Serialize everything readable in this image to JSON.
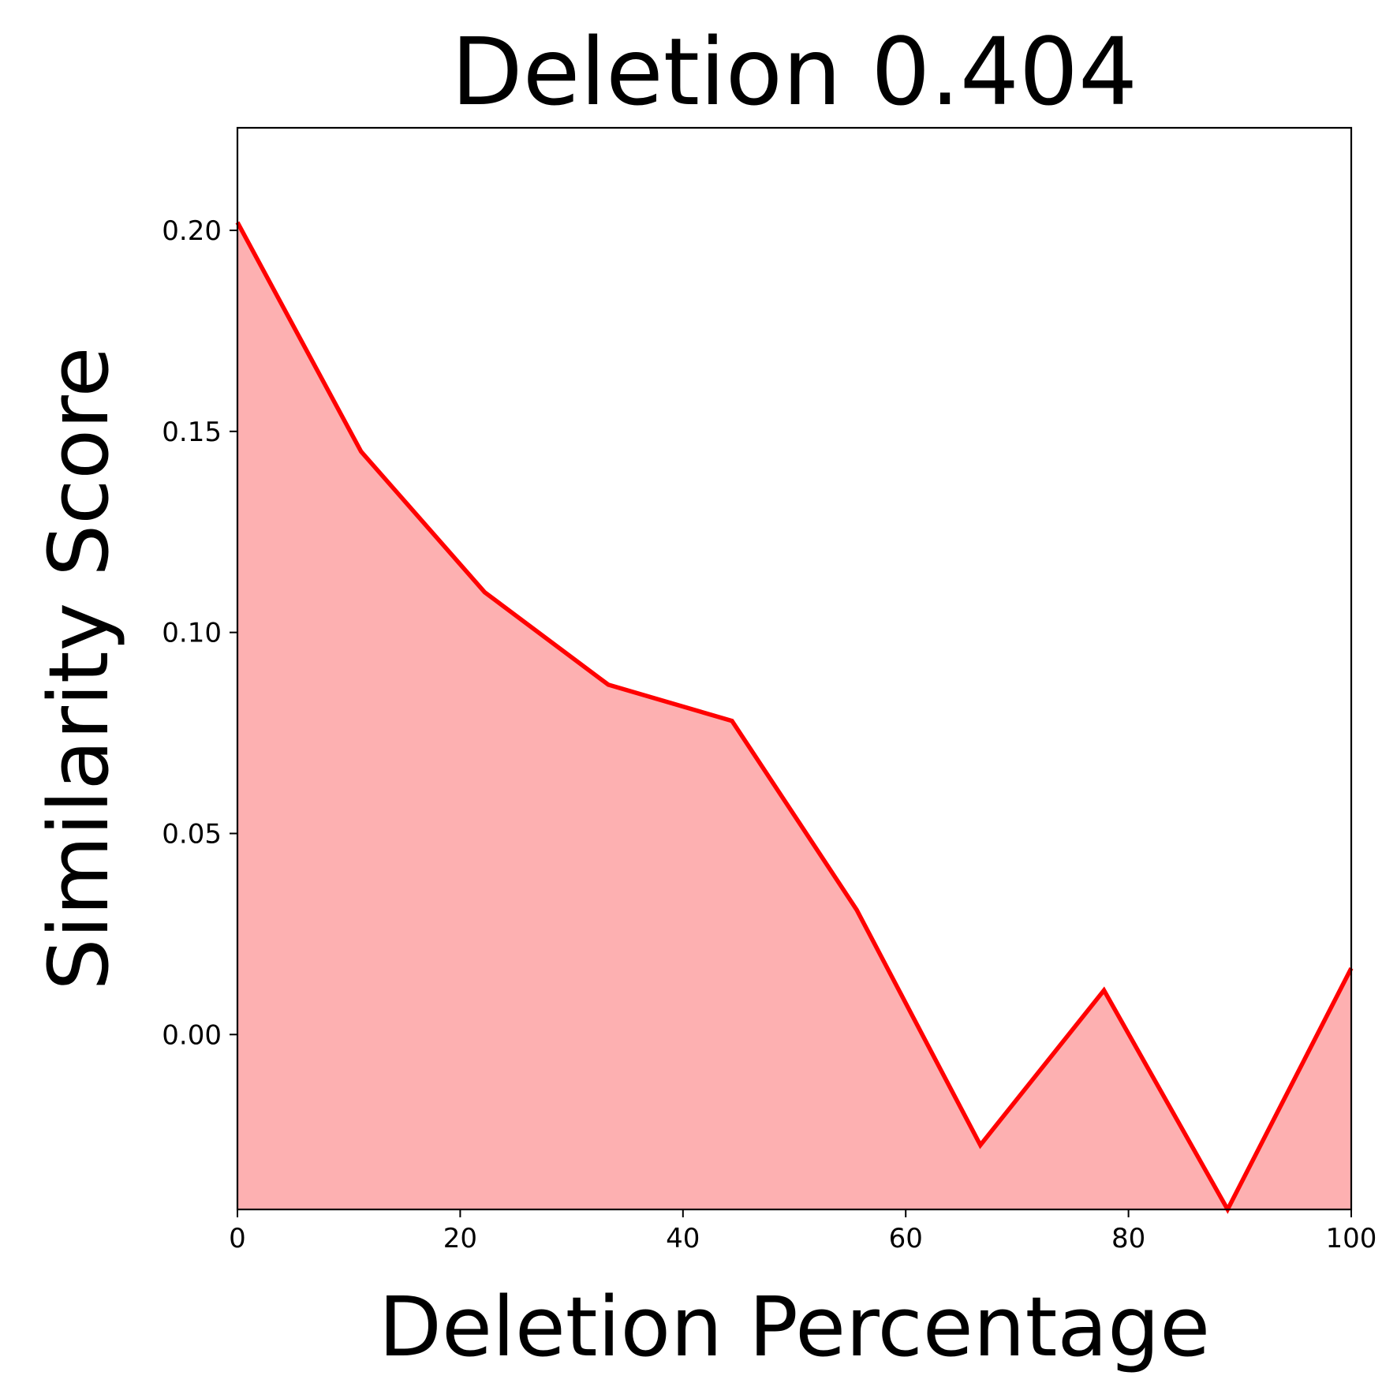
{
  "chart_data": {
    "type": "area",
    "title": "Deletion 0.404",
    "xlabel": "Deletion Percentage",
    "ylabel": "Similarity Score",
    "xlim": [
      0,
      100
    ],
    "ylim": [
      -0.0435,
      0.2255
    ],
    "xticks": [
      0,
      20,
      40,
      60,
      80,
      100
    ],
    "xtick_labels": [
      "0",
      "20",
      "40",
      "60",
      "80",
      "100"
    ],
    "yticks": [
      0.0,
      0.05,
      0.1,
      0.15,
      0.2
    ],
    "ytick_labels": [
      "0.00",
      "0.05",
      "0.10",
      "0.15",
      "0.20"
    ],
    "grid": false,
    "series": [
      {
        "x": [
          0,
          11.1,
          22.2,
          33.3,
          44.4,
          55.6,
          66.7,
          77.8,
          88.9,
          100
        ],
        "values": [
          0.202,
          0.145,
          0.11,
          0.087,
          0.078,
          0.031,
          -0.0275,
          0.011,
          -0.0435,
          0.0165
        ],
        "line_color": "#ff0000",
        "fill_color": "#fdb0b1"
      }
    ]
  }
}
